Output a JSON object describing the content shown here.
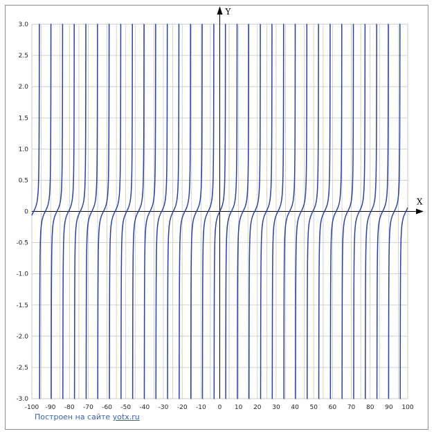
{
  "credit": {
    "text": "Построен на сайте",
    "link": "yotx.ru"
  },
  "colors": {
    "curve": "#2b3fa8",
    "grid": "#c8c8c8",
    "axis": "#000000",
    "frame": "#8c8c8c"
  },
  "chart_data": {
    "type": "line",
    "title": "",
    "xlabel": "X",
    "ylabel": "Y",
    "xlim": [
      -100,
      100
    ],
    "ylim": [
      -3,
      3
    ],
    "grid": true,
    "x_ticks": [
      "-100",
      "-90",
      "-80",
      "-70",
      "-60",
      "-50",
      "-40",
      "-30",
      "-20",
      "-10",
      "0",
      "10",
      "20",
      "30",
      "40",
      "50",
      "60",
      "70",
      "80",
      "90",
      "100"
    ],
    "y_ticks": [
      "3.0",
      "2.5",
      "2.0",
      "1.5",
      "1.0",
      "0.5",
      "0",
      "-0.5",
      "-1.0",
      "-1.5",
      "-2.0",
      "-2.5",
      "-3.0"
    ],
    "series": [
      {
        "function": "periodic tangent-like branches, period ≈ 6.19, roots at x = 6.19·k",
        "period": 6.19,
        "offset": 0
      }
    ]
  }
}
